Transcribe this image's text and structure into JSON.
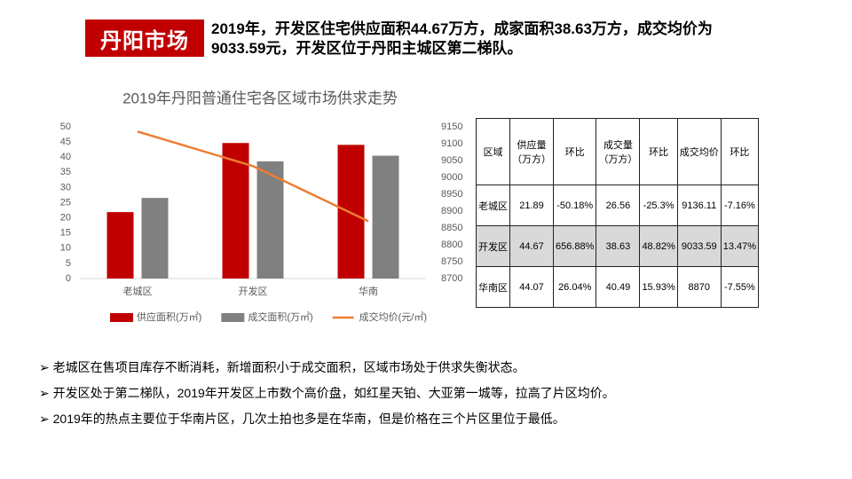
{
  "header": {
    "title": "丹阳市场",
    "summary": [
      "2019年，开发区住宅供应面积44.67万方，成家面积38.63万方，成交均价为",
      "9033.59元，开发区位于丹阳主城区第二梯队。"
    ]
  },
  "chart_data": {
    "type": "bar",
    "title": "2019年丹阳普通住宅各区域市场供求走势",
    "categories": [
      "老城区",
      "开发区",
      "华南"
    ],
    "series": [
      {
        "name": "供应面积(万㎡)",
        "color": "#c00000",
        "values": [
          21.89,
          44.67,
          44.07
        ]
      },
      {
        "name": "成交面积(万㎡)",
        "color": "#808080",
        "values": [
          26.56,
          38.63,
          40.49
        ]
      },
      {
        "name": "成交均价(元/㎡)",
        "color": "#ed7d31",
        "values": [
          9136.11,
          9033.59,
          8870
        ],
        "axis": "y2",
        "type": "line"
      }
    ],
    "ylim": [
      0,
      50
    ],
    "yticks": [
      0,
      5,
      10,
      15,
      20,
      25,
      30,
      35,
      40,
      45,
      50
    ],
    "y2lim": [
      8700,
      9150
    ],
    "y2ticks": [
      8700,
      8750,
      8800,
      8850,
      8900,
      8950,
      9000,
      9050,
      9100,
      9150
    ],
    "grid": false,
    "legend": "bottom"
  },
  "table": {
    "header": [
      [
        "区域"
      ],
      [
        "供应量",
        "（万方）"
      ],
      [
        "环比"
      ],
      [
        "成交量",
        "（万方）"
      ],
      [
        "环比"
      ],
      [
        "成交均价"
      ],
      [
        "环比"
      ]
    ],
    "rows": [
      [
        "老城区",
        "21.89",
        "-50.18%",
        "26.56",
        "-25.3%",
        "9136.11",
        "-7.16%"
      ],
      [
        "开发区",
        "44.67",
        "656.88%",
        "38.63",
        "48.82%",
        "9033.59",
        "13.47%"
      ],
      [
        "华南区",
        "44.07",
        "26.04%",
        "40.49",
        "15.93%",
        "8870",
        "-7.55%"
      ]
    ],
    "highlight_row": 1
  },
  "bullets": [
    "老城区在售项目库存不断消耗，新增面积小于成交面积，区域市场处于供求失衡状态。",
    "开发区处于第二梯队，2019年开发区上市数个高价盘，如红星天铂、大亚第一城等，拉高了片区均价。",
    "2019年的热点主要位于华南片区，几次土拍也多是在华南，但是价格在三个片区里位于最低。"
  ]
}
